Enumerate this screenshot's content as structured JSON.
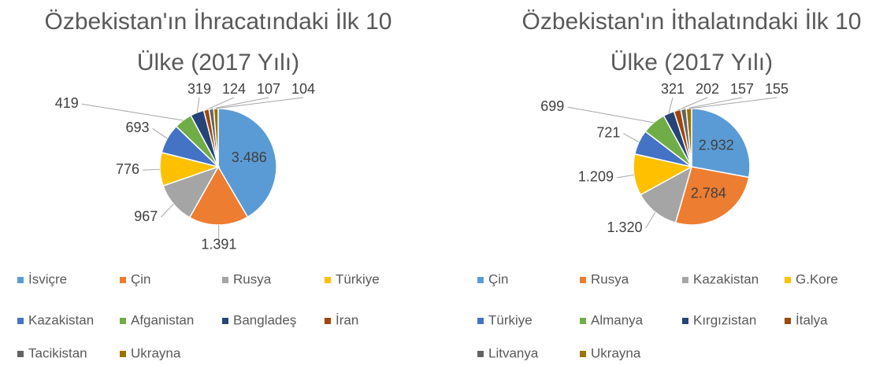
{
  "chart_data": [
    {
      "type": "pie",
      "title": "Özbekistan'ın İhracatındaki İlk 10 Ülke (2017 Yılı)",
      "categories": [
        "İsviçre",
        "Çin",
        "Rusya",
        "Türkiye",
        "Kazakistan",
        "Afganistan",
        "Bangladeş",
        "İran",
        "Tacikistan",
        "Ukrayna"
      ],
      "values": [
        3486,
        1391,
        967,
        776,
        693,
        419,
        319,
        124,
        107,
        104
      ],
      "value_labels": [
        "3.486",
        "1.391",
        "967",
        "776",
        "693",
        "419",
        "319",
        "124",
        "107",
        "104"
      ],
      "colors": [
        "#5b9bd5",
        "#ed7d31",
        "#a5a5a5",
        "#ffc000",
        "#4472c4",
        "#70ad47",
        "#264478",
        "#9e480e",
        "#636363",
        "#997300"
      ],
      "legend": "bottom"
    },
    {
      "type": "pie",
      "title": "Özbekistan'ın İthalatındaki İlk 10 Ülke (2017 Yılı)",
      "categories": [
        "Çin",
        "Rusya",
        "Kazakistan",
        "G.Kore",
        "Türkiye",
        "Almanya",
        "Kırgızistan",
        "İtalya",
        "Litvanya",
        "Ukrayna"
      ],
      "values": [
        2932,
        2784,
        1320,
        1209,
        721,
        699,
        321,
        202,
        157,
        155
      ],
      "value_labels": [
        "2.932",
        "2.784",
        "1.320",
        "1.209",
        "721",
        "699",
        "321",
        "202",
        "157",
        "155"
      ],
      "colors": [
        "#5b9bd5",
        "#ed7d31",
        "#a5a5a5",
        "#ffc000",
        "#4472c4",
        "#70ad47",
        "#264478",
        "#9e480e",
        "#636363",
        "#997300"
      ],
      "legend": "bottom"
    }
  ]
}
